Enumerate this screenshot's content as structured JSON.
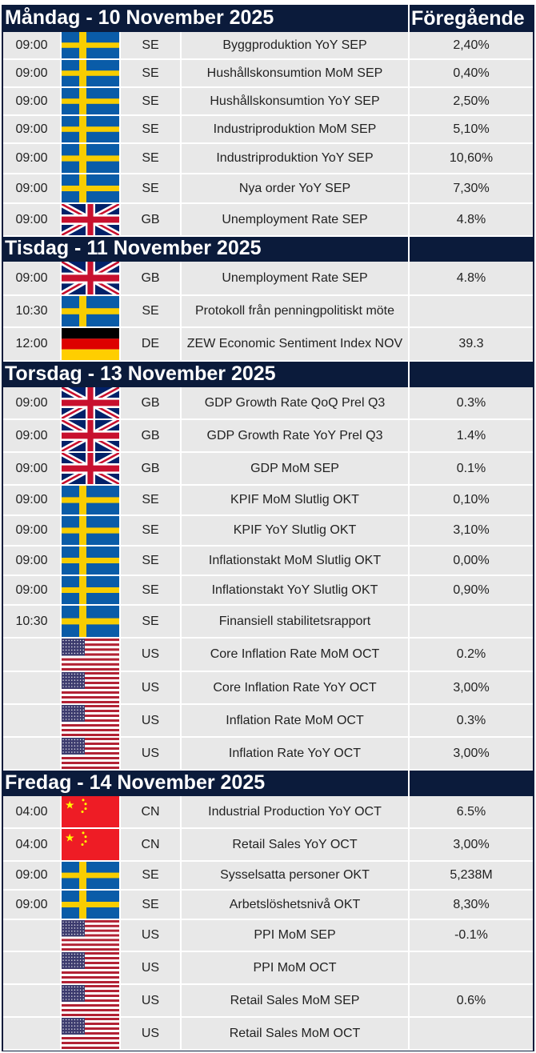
{
  "colors": {
    "header_bg": "#0b1b3b",
    "cell_bg": "#e8e8e8"
  },
  "prev_header": "Föregående",
  "days": [
    {
      "title": "Måndag - 10 November 2025",
      "events": [
        {
          "time": "09:00",
          "flag": "se-flag-icon",
          "country": "SE",
          "event": "Byggproduktion YoY SEP",
          "prev": "2,40%"
        },
        {
          "time": "09:00",
          "flag": "se-flag-icon",
          "country": "SE",
          "event": "Hushållskonsumtion MoM SEP",
          "prev": "0,40%"
        },
        {
          "time": "09:00",
          "flag": "se-flag-icon",
          "country": "SE",
          "event": "Hushållskonsumtion YoY SEP",
          "prev": "2,50%"
        },
        {
          "time": "09:00",
          "flag": "se-flag-icon",
          "country": "SE",
          "event": "Industriproduktion MoM SEP",
          "prev": "5,10%"
        },
        {
          "time": "09:00",
          "flag": "se-flag-icon",
          "country": "SE",
          "event": "Industriproduktion YoY SEP",
          "prev": "10,60%"
        },
        {
          "time": "09:00",
          "flag": "se-flag-icon",
          "country": "SE",
          "event": "Nya order YoY SEP",
          "prev": "7,30%"
        },
        {
          "time": "09:00",
          "flag": "gb-flag-icon",
          "country": "GB",
          "event": "Unemployment Rate SEP",
          "prev": "4.8%"
        }
      ]
    },
    {
      "title": "Tisdag - 11 November 2025",
      "events": [
        {
          "time": "09:00",
          "flag": "gb-flag-icon",
          "country": "GB",
          "event": "Unemployment Rate SEP",
          "prev": "4.8%"
        },
        {
          "time": "10:30",
          "flag": "se-flag-icon",
          "country": "SE",
          "event": "Protokoll från penningpolitiskt möte",
          "prev": ""
        },
        {
          "time": "12:00",
          "flag": "de-flag-icon",
          "country": "DE",
          "event": "ZEW Economic Sentiment Index NOV",
          "prev": "39.3"
        }
      ]
    },
    {
      "title": "Torsdag - 13 November 2025",
      "events": [
        {
          "time": "09:00",
          "flag": "gb-flag-icon",
          "country": "GB",
          "event": "GDP Growth Rate QoQ Prel Q3",
          "prev": "0.3%"
        },
        {
          "time": "09:00",
          "flag": "gb-flag-icon",
          "country": "GB",
          "event": "GDP Growth Rate YoY Prel Q3",
          "prev": "1.4%"
        },
        {
          "time": "09:00",
          "flag": "gb-flag-icon",
          "country": "GB",
          "event": "GDP MoM SEP",
          "prev": "0.1%"
        },
        {
          "time": "09:00",
          "flag": "se-flag-icon",
          "country": "SE",
          "event": "KPIF MoM Slutlig OKT",
          "prev": "0,10%"
        },
        {
          "time": "09:00",
          "flag": "se-flag-icon",
          "country": "SE",
          "event": "KPIF YoY Slutlig OKT",
          "prev": "3,10%"
        },
        {
          "time": "09:00",
          "flag": "se-flag-icon",
          "country": "SE",
          "event": "Inflationstakt MoM Slutlig OKT",
          "prev": "0,00%"
        },
        {
          "time": "09:00",
          "flag": "se-flag-icon",
          "country": "SE",
          "event": "Inflationstakt YoY Slutlig OKT",
          "prev": "0,90%"
        },
        {
          "time": "10:30",
          "flag": "se-flag-icon",
          "country": "SE",
          "event": "Finansiell stabilitetsrapport",
          "prev": ""
        },
        {
          "time": "",
          "flag": "us-flag-icon",
          "country": "US",
          "event": "Core Inflation Rate MoM OCT",
          "prev": "0.2%"
        },
        {
          "time": "",
          "flag": "us-flag-icon",
          "country": "US",
          "event": "Core Inflation Rate YoY OCT",
          "prev": "3,00%"
        },
        {
          "time": "",
          "flag": "us-flag-icon",
          "country": "US",
          "event": "Inflation Rate MoM OCT",
          "prev": "0.3%"
        },
        {
          "time": "",
          "flag": "us-flag-icon",
          "country": "US",
          "event": "Inflation Rate YoY OCT",
          "prev": "3,00%"
        }
      ]
    },
    {
      "title": "Fredag - 14 November 2025",
      "events": [
        {
          "time": "04:00",
          "flag": "cn-flag-icon",
          "country": "CN",
          "event": "Industrial Production YoY OCT",
          "prev": "6.5%"
        },
        {
          "time": "04:00",
          "flag": "cn-flag-icon",
          "country": "CN",
          "event": "Retail Sales YoY OCT",
          "prev": "3,00%"
        },
        {
          "time": "09:00",
          "flag": "se-flag-icon",
          "country": "SE",
          "event": "Sysselsatta personer OKT",
          "prev": "5,238M"
        },
        {
          "time": "09:00",
          "flag": "se-flag-icon",
          "country": "SE",
          "event": "Arbetslöshetsnivå OKT",
          "prev": "8,30%"
        },
        {
          "time": "",
          "flag": "us-flag-icon",
          "country": "US",
          "event": "PPI MoM SEP",
          "prev": "-0.1%"
        },
        {
          "time": "",
          "flag": "us-flag-icon",
          "country": "US",
          "event": "PPI MoM OCT",
          "prev": ""
        },
        {
          "time": "",
          "flag": "us-flag-icon",
          "country": "US",
          "event": "Retail Sales MoM SEP",
          "prev": "0.6%"
        },
        {
          "time": "",
          "flag": "us-flag-icon",
          "country": "US",
          "event": "Retail Sales MoM OCT",
          "prev": ""
        }
      ]
    }
  ]
}
